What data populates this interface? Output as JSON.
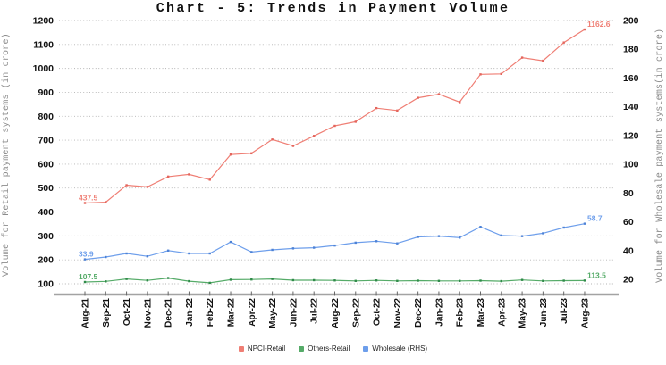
{
  "chart_data": {
    "type": "line",
    "title": "Chart - 5: Trends in Payment Volume",
    "ylabel_left": "Volume for Retail payment systems (in crore)",
    "ylabel_right": "Volume for Wholesale payment systems(in crore)",
    "xlabel": "",
    "grid": "horizontal-dotted",
    "legend_position": "bottom",
    "y_left": {
      "min": 100,
      "max": 1200,
      "step": 100
    },
    "y_right": {
      "min": 20,
      "max": 200,
      "step": 20
    },
    "categories": [
      "Aug-21",
      "Sep-21",
      "Oct-21",
      "Nov-21",
      "Dec-21",
      "Jan-22",
      "Feb-22",
      "Mar-22",
      "Apr-22",
      "May-22",
      "Jun-22",
      "Jul-22",
      "Aug-22",
      "Sep-22",
      "Oct-22",
      "Nov-22",
      "Dec-22",
      "Jan-23",
      "Feb-23",
      "Mar-23",
      "Apr-23",
      "May-23",
      "Jun-23",
      "Jul-23",
      "Aug-23"
    ],
    "series": [
      {
        "name": "NPCI-Retail",
        "axis": "left",
        "color": "#ef7e74",
        "marker_color": "#e4655c",
        "first_label": "437.5",
        "last_label": "1162.6",
        "values": [
          437.5,
          441,
          512,
          505,
          548,
          557,
          535,
          640,
          645,
          703,
          676,
          718,
          760,
          777,
          834,
          824,
          877,
          892,
          859,
          975,
          977,
          1045,
          1032,
          1108,
          1162.6
        ]
      },
      {
        "name": "Others-Retail",
        "axis": "left",
        "color": "#55ab68",
        "marker_color": "#2f8a49",
        "first_label": "107.5",
        "last_label": "113.5",
        "values": [
          107.5,
          110,
          120,
          114,
          124,
          111,
          104,
          117,
          118,
          120,
          115,
          115,
          114,
          112,
          114,
          112,
          113,
          112,
          112,
          113,
          111,
          116,
          112,
          113,
          113.5
        ]
      },
      {
        "name": "Wholesale (RHS)",
        "axis": "right",
        "color": "#6d9eeb",
        "marker_color": "#4d82d6",
        "first_label": "33.9",
        "last_label": "58.7",
        "values": [
          33.9,
          35.5,
          38,
          36,
          40,
          38,
          38,
          46,
          39,
          40.5,
          41.5,
          42,
          43.5,
          45.5,
          46.5,
          45,
          49.5,
          50,
          49,
          56.5,
          50.5,
          50,
          52,
          56,
          58.7
        ]
      }
    ]
  }
}
